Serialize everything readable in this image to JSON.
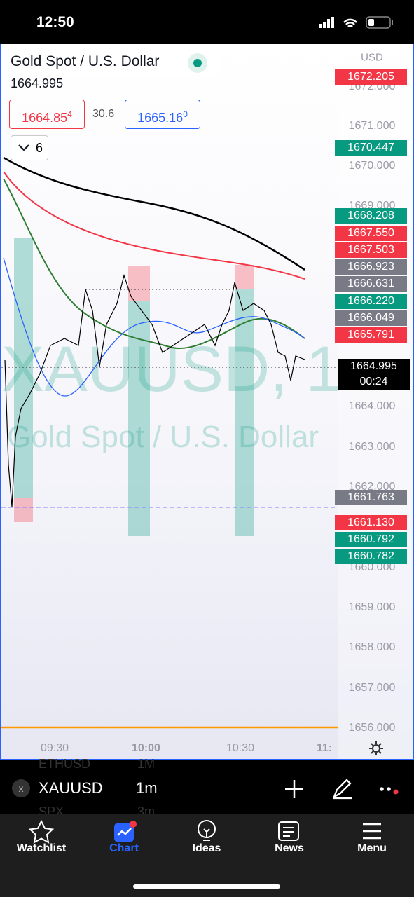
{
  "status_bar": {
    "time": "12:50"
  },
  "symbol_header": {
    "title": "Gold Spot / U.S. Dollar",
    "last_price": "1664.995",
    "sell": {
      "price": "1664.85",
      "pip": "4"
    },
    "spread": "30.6",
    "buy": {
      "price": "1665.16",
      "pip": "0"
    },
    "indicators_count": "6"
  },
  "watermark": {
    "symbol": "XAUUSD, 1",
    "description": "Gold Spot / U.S. Dollar"
  },
  "price_axis": {
    "currency": "USD",
    "scale": [
      "1672.000",
      "1671.000",
      "1670.000",
      "1669.000",
      "1664.000",
      "1663.000",
      "1662.000",
      "1660.000",
      "1659.000",
      "1658.000",
      "1657.000",
      "1656.000"
    ],
    "badges": [
      "1672.205",
      "1670.447",
      "1668.208",
      "1667.550",
      "1667.503",
      "1666.923",
      "1666.631",
      "1666.220",
      "1666.049",
      "1665.791",
      "1661.763",
      "1661.130",
      "1660.792",
      "1660.782"
    ],
    "current": {
      "price": "1664.995",
      "countdown": "00:24"
    }
  },
  "time_axis": [
    "09:30",
    "10:00",
    "10:30",
    "11:"
  ],
  "toolbar": {
    "symbol": "XAUUSD",
    "interval": "1m",
    "behind": [
      "ETHUSD",
      "1M",
      "SPX",
      "3m"
    ]
  },
  "tabs": [
    "Watchlist",
    "Chart",
    "Ideas",
    "News",
    "Menu"
  ]
}
